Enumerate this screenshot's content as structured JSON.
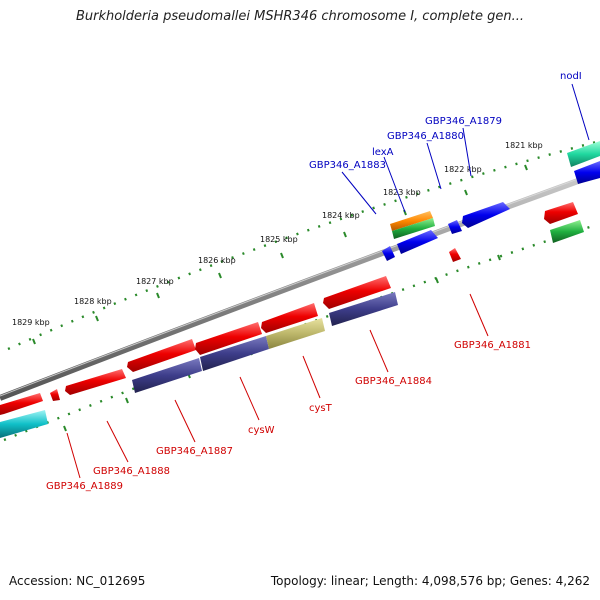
{
  "title": "Burkholderia pseudomallei MSHR346 chromosome I, complete gen...",
  "footer": {
    "accession": "Accession: NC_012695",
    "summary": "Topology: linear; Length: 4,098,576 bp; Genes: 4,262"
  },
  "colors": {
    "backbone": "#888888",
    "gene_red": "#e00000",
    "gene_purple": "#3d3d8a",
    "gene_olive": "#bdb76b",
    "gene_blue": "#0000ee",
    "gene_cyan": "#10c0c8",
    "gene_green": "#20b040",
    "gene_orange": "#ff8800",
    "label_red": "#d00000",
    "label_blue": "#0000c0",
    "tick_green": "#2a8a2a"
  },
  "scale": {
    "unit": "kbp",
    "upper_ruler_ticks": [
      "1821 kbp",
      "1822 kbp",
      "1823 kbp",
      "1824 kbp",
      "1825 kbp",
      "1826 kbp",
      "1827 kbp",
      "1828 kbp",
      "1829 kbp"
    ]
  },
  "genes": {
    "plus_strand_labels": [
      "nodI",
      "GBP346_A1879",
      "GBP346_A1880",
      "lexA",
      "GBP346_A1883"
    ],
    "minus_strand_labels": [
      "GBP346_A1881",
      "GBP346_A1884",
      "cysT",
      "cysW",
      "GBP346_A1887",
      "GBP346_A1888",
      "GBP346_A1889"
    ]
  }
}
